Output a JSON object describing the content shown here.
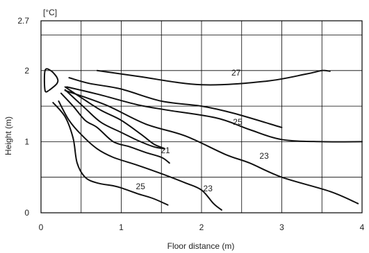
{
  "chart_data": {
    "type": "line",
    "unit": "[°C]",
    "xlabel": "Floor distance (m)",
    "ylabel": "Height (m)",
    "xlim": [
      0,
      4
    ],
    "ylim": [
      0,
      2.7
    ],
    "x_ticks": [
      0,
      1,
      2,
      3,
      4
    ],
    "y_tick_labels": [
      {
        "value": 0,
        "label": "0"
      },
      {
        "value": 1,
        "label": "1"
      },
      {
        "value": 2,
        "label": "2"
      },
      {
        "value": 2.7,
        "label": "2.7"
      }
    ],
    "x_grid": [
      0,
      0.5,
      1,
      1.5,
      2,
      2.5,
      3,
      3.5,
      4
    ],
    "y_grid": [
      0,
      0.5,
      1,
      1.5,
      2,
      2.5,
      2.7
    ],
    "grid": true,
    "outlet": [
      [
        0.1,
        1.72
      ],
      [
        0.05,
        1.72
      ],
      [
        0.05,
        2.0
      ],
      [
        0.12,
        2.0
      ],
      [
        0.2,
        1.9
      ],
      [
        0.2,
        1.82
      ],
      [
        0.1,
        1.72
      ]
    ],
    "series": [
      {
        "label": "27",
        "label_at": [
          2.43,
          1.93
        ],
        "points": [
          [
            0.7,
            2.0
          ],
          [
            1.2,
            1.92
          ],
          [
            2.0,
            1.8
          ],
          [
            2.8,
            1.85
          ],
          [
            3.3,
            1.95
          ],
          [
            3.5,
            2.0
          ],
          [
            3.6,
            1.99
          ]
        ]
      },
      {
        "label": "",
        "label_at": null,
        "points": [
          [
            0.35,
            1.9
          ],
          [
            0.6,
            1.82
          ],
          [
            1.0,
            1.74
          ],
          [
            1.5,
            1.57
          ],
          [
            2.0,
            1.5
          ],
          [
            2.4,
            1.4
          ],
          [
            3.0,
            1.2
          ]
        ]
      },
      {
        "label": "25",
        "label_at": [
          2.45,
          1.24
        ],
        "points": [
          [
            0.32,
            1.77
          ],
          [
            0.7,
            1.67
          ],
          [
            1.2,
            1.52
          ],
          [
            1.6,
            1.44
          ],
          [
            2.2,
            1.33
          ],
          [
            2.6,
            1.17
          ],
          [
            3.0,
            1.03
          ],
          [
            3.5,
            1.0
          ],
          [
            4.0,
            1.0
          ]
        ]
      },
      {
        "label": "23",
        "label_at": [
          2.78,
          0.76
        ],
        "points": [
          [
            0.3,
            1.72
          ],
          [
            0.8,
            1.52
          ],
          [
            1.3,
            1.25
          ],
          [
            1.8,
            1.08
          ],
          [
            2.3,
            0.82
          ],
          [
            2.6,
            0.7
          ],
          [
            3.0,
            0.5
          ],
          [
            3.6,
            0.3
          ],
          [
            3.95,
            0.13
          ]
        ]
      },
      {
        "label": "21",
        "label_at": [
          1.55,
          0.84
        ],
        "points": [
          [
            0.3,
            1.77
          ],
          [
            0.5,
            1.62
          ],
          [
            0.75,
            1.44
          ],
          [
            1.0,
            1.3
          ],
          [
            1.25,
            1.1
          ],
          [
            1.4,
            0.97
          ],
          [
            1.5,
            0.92
          ],
          [
            1.54,
            0.9
          ]
        ]
      },
      {
        "label": "",
        "label_at": null,
        "points": [
          [
            0.3,
            1.73
          ],
          [
            0.55,
            1.47
          ],
          [
            0.75,
            1.27
          ],
          [
            1.0,
            1.13
          ],
          [
            1.2,
            1.02
          ],
          [
            1.4,
            0.93
          ],
          [
            1.54,
            0.9
          ]
        ]
      },
      {
        "label": "",
        "label_at": null,
        "points": [
          [
            0.25,
            1.68
          ],
          [
            0.4,
            1.5
          ],
          [
            0.55,
            1.3
          ],
          [
            0.7,
            1.2
          ],
          [
            0.9,
            1.0
          ],
          [
            1.1,
            0.93
          ],
          [
            1.3,
            0.85
          ],
          [
            1.5,
            0.78
          ],
          [
            1.6,
            0.7
          ]
        ]
      },
      {
        "label": "23",
        "label_at": [
          2.08,
          0.3
        ],
        "points": [
          [
            0.22,
            1.57
          ],
          [
            0.35,
            1.3
          ],
          [
            0.5,
            1.1
          ],
          [
            0.7,
            0.9
          ],
          [
            0.9,
            0.78
          ],
          [
            1.2,
            0.67
          ],
          [
            1.5,
            0.55
          ],
          [
            1.8,
            0.42
          ],
          [
            2.0,
            0.32
          ],
          [
            2.15,
            0.13
          ],
          [
            2.25,
            0.04
          ]
        ]
      },
      {
        "label": "25",
        "label_at": [
          1.24,
          0.33
        ],
        "points": [
          [
            0.15,
            1.55
          ],
          [
            0.3,
            1.35
          ],
          [
            0.4,
            1.05
          ],
          [
            0.45,
            0.7
          ],
          [
            0.55,
            0.5
          ],
          [
            0.7,
            0.42
          ],
          [
            0.9,
            0.38
          ],
          [
            1.0,
            0.35
          ],
          [
            1.2,
            0.27
          ],
          [
            1.4,
            0.2
          ],
          [
            1.58,
            0.11
          ]
        ]
      }
    ]
  }
}
